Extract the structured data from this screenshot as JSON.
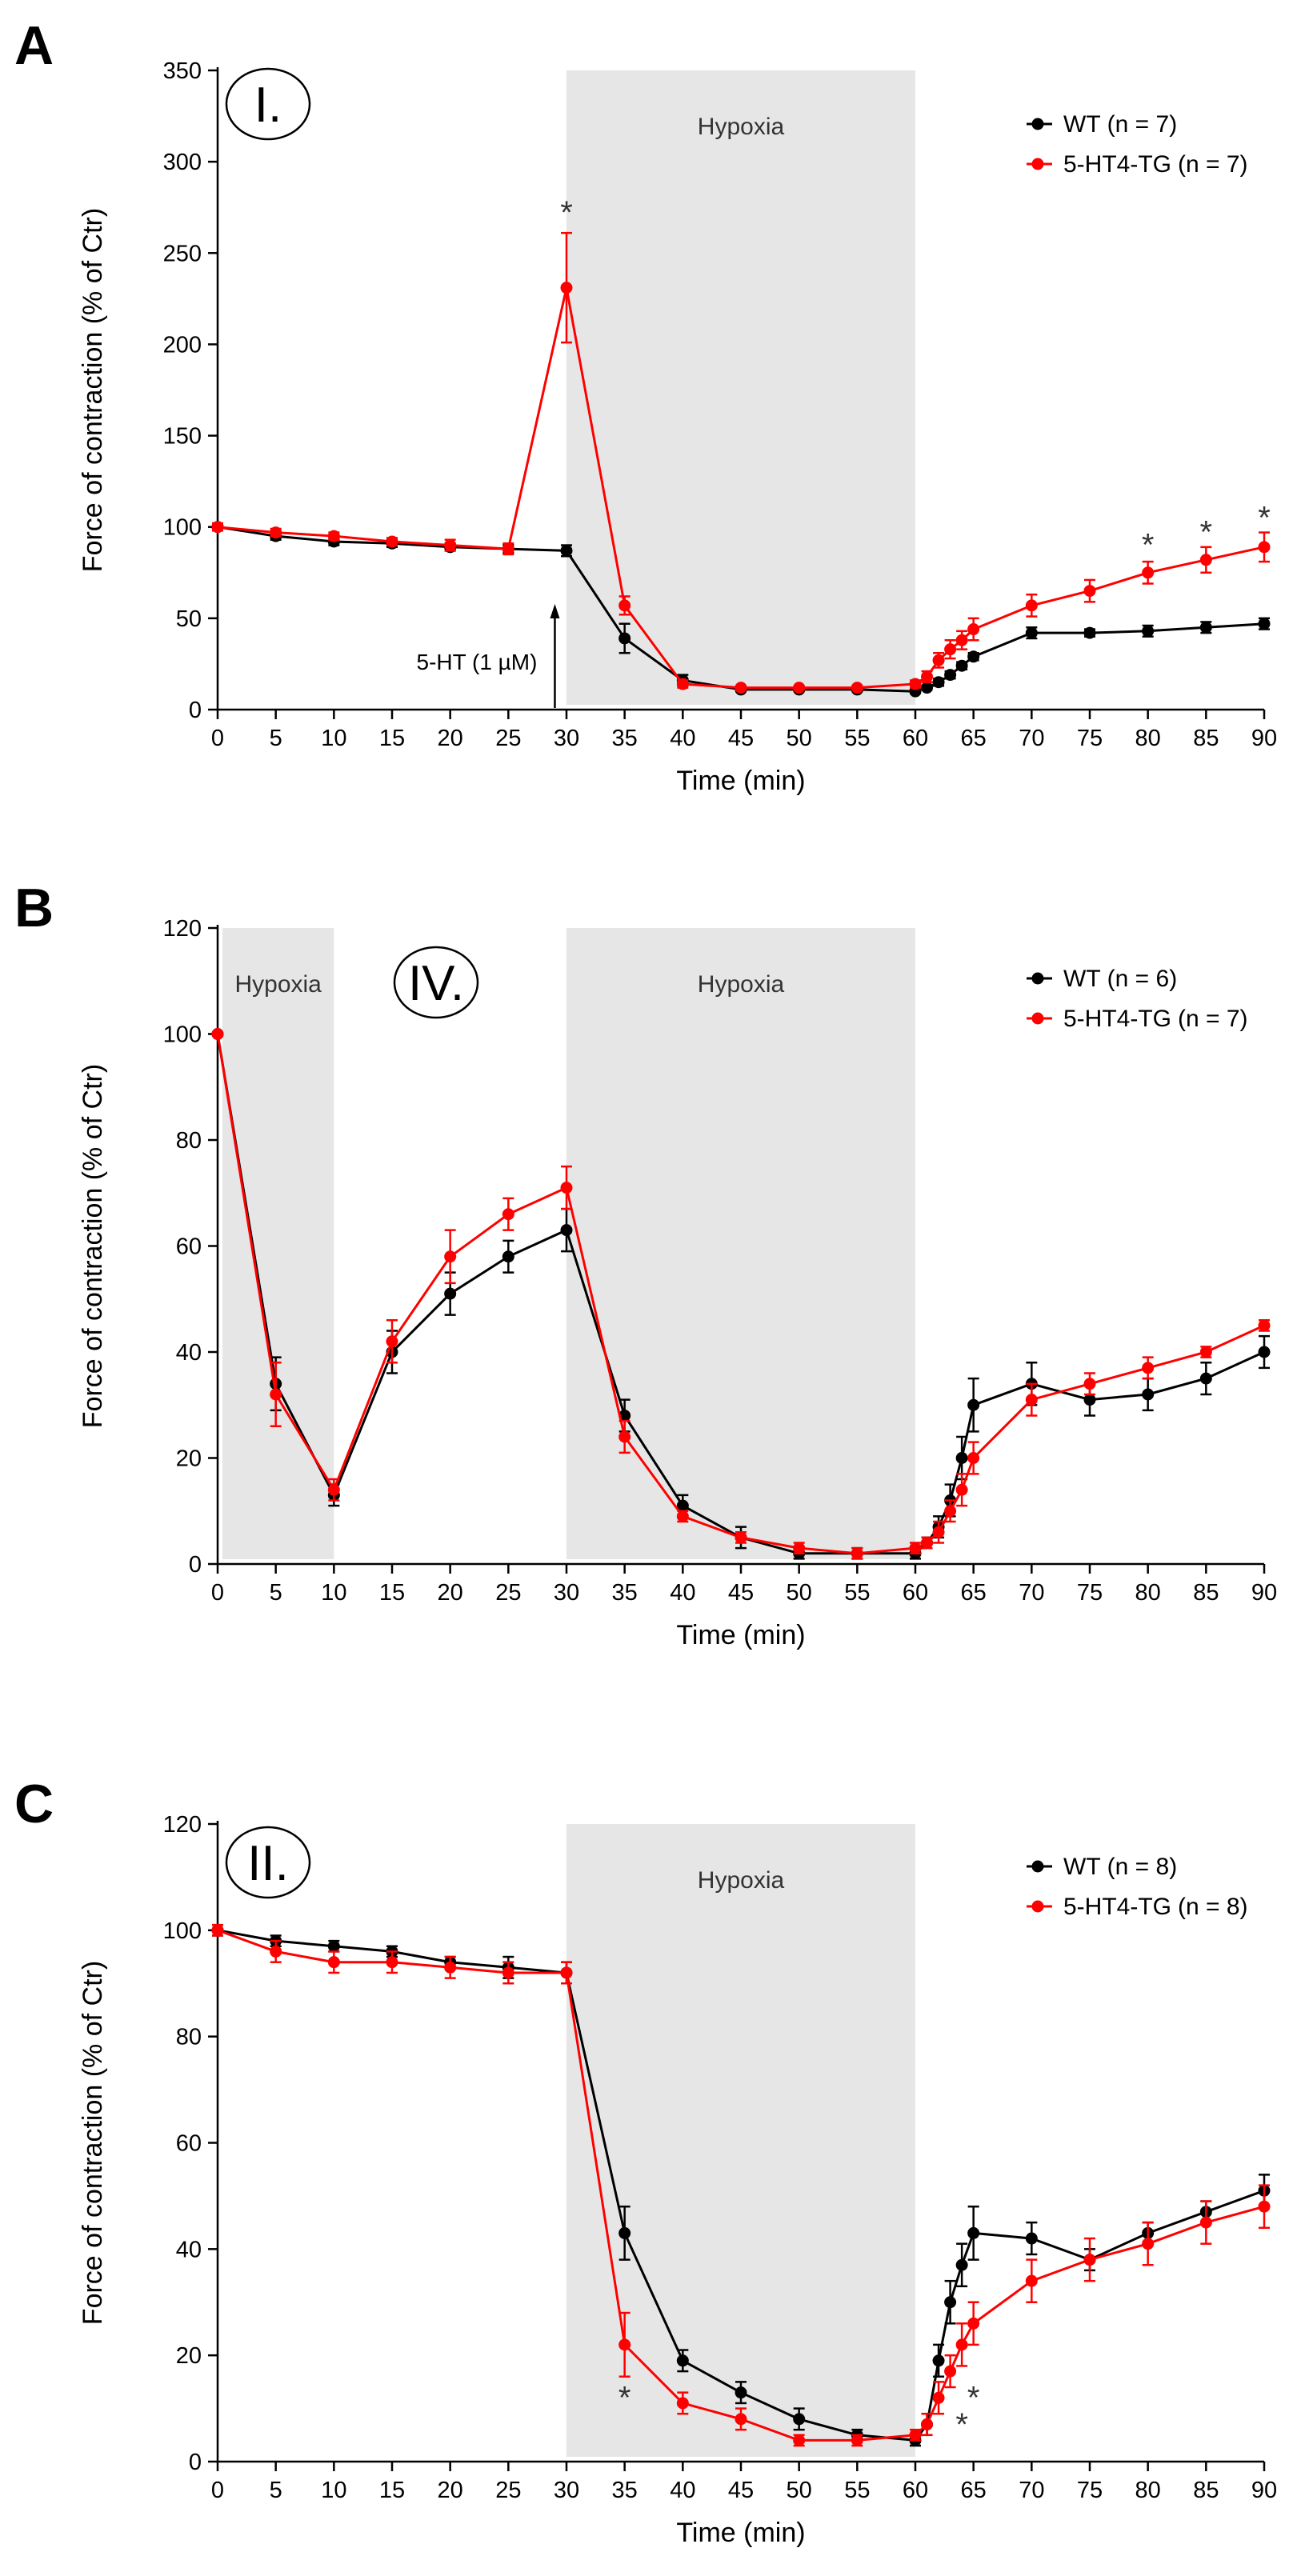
{
  "chart_data": [
    {
      "panel_letter": "A",
      "roman": "I.",
      "type": "line",
      "xlabel": "Time (min)",
      "ylabel": "Force of contraction (% of Ctr)",
      "xlim": [
        0,
        90
      ],
      "ylim": [
        0,
        350
      ],
      "xticks": [
        0,
        5,
        10,
        15,
        20,
        25,
        30,
        35,
        40,
        45,
        50,
        55,
        60,
        65,
        70,
        75,
        80,
        85,
        90
      ],
      "yticks": [
        0,
        50,
        100,
        150,
        200,
        250,
        300,
        350
      ],
      "shaded_regions": [
        {
          "x0": 30,
          "x1": 60,
          "label": "Hypoxia"
        }
      ],
      "annotations": [
        {
          "text": "5-HT (1 µM)",
          "x": 29,
          "y": 0,
          "arrow": true
        }
      ],
      "significance": [
        {
          "x": 30,
          "y": 275,
          "text": "*"
        },
        {
          "x": 80,
          "y": 93,
          "text": "*"
        },
        {
          "x": 85,
          "y": 100,
          "text": "*"
        },
        {
          "x": 90,
          "y": 108,
          "text": "*"
        }
      ],
      "legend_position": "top-right",
      "series": [
        {
          "name": "WT",
          "n_label": "(n = 7)",
          "color": "#000000",
          "x": [
            0,
            5,
            10,
            15,
            20,
            25,
            30,
            35,
            40,
            45,
            50,
            55,
            60,
            61,
            62,
            63,
            64,
            65,
            70,
            75,
            80,
            85,
            90
          ],
          "y": [
            100,
            95,
            92,
            91,
            89,
            88,
            87,
            39,
            16,
            11,
            11,
            11,
            10,
            12,
            15,
            19,
            24,
            29,
            42,
            42,
            43,
            45,
            47
          ],
          "err": [
            2,
            2,
            2,
            2,
            2,
            2,
            3,
            8,
            3,
            1,
            1,
            1,
            1,
            1,
            2,
            2,
            2,
            2,
            3,
            2,
            3,
            3,
            3
          ]
        },
        {
          "name": "5-HT4-TG",
          "n_label": "(n = 7)",
          "color": "#ff0000",
          "x": [
            0,
            5,
            10,
            15,
            20,
            25,
            30,
            35,
            40,
            45,
            50,
            55,
            60,
            61,
            62,
            63,
            64,
            65,
            70,
            75,
            80,
            85,
            90
          ],
          "y": [
            100,
            97,
            95,
            92,
            90,
            88,
            231,
            57,
            14,
            12,
            12,
            12,
            14,
            18,
            27,
            33,
            38,
            44,
            57,
            65,
            75,
            82,
            89
          ],
          "err": [
            2,
            2,
            2,
            2,
            3,
            3,
            30,
            5,
            2,
            1,
            1,
            1,
            2,
            3,
            4,
            5,
            5,
            6,
            6,
            6,
            6,
            7,
            8
          ]
        }
      ]
    },
    {
      "panel_letter": "B",
      "roman": "IV.",
      "type": "line",
      "xlabel": "Time (min)",
      "ylabel": "Force of contraction (% of Ctr)",
      "xlim": [
        0,
        90
      ],
      "ylim": [
        0,
        120
      ],
      "xticks": [
        0,
        5,
        10,
        15,
        20,
        25,
        30,
        35,
        40,
        45,
        50,
        55,
        60,
        65,
        70,
        75,
        80,
        85,
        90
      ],
      "yticks": [
        0,
        20,
        40,
        60,
        80,
        100,
        120
      ],
      "shaded_regions": [
        {
          "x0": 0,
          "x1": 10,
          "label": "Hypoxia"
        },
        {
          "x0": 30,
          "x1": 60,
          "label": "Hypoxia"
        }
      ],
      "annotations": [],
      "significance": [],
      "legend_position": "top-right",
      "series": [
        {
          "name": "WT",
          "n_label": "(n = 6)",
          "color": "#000000",
          "x": [
            0,
            5,
            10,
            15,
            20,
            25,
            30,
            35,
            40,
            45,
            50,
            55,
            60,
            61,
            62,
            63,
            64,
            65,
            70,
            75,
            80,
            85,
            90
          ],
          "y": [
            100,
            34,
            13,
            40,
            51,
            58,
            63,
            28,
            11,
            5,
            2,
            2,
            2,
            4,
            7,
            12,
            20,
            30,
            34,
            31,
            32,
            35,
            40
          ],
          "err": [
            0,
            5,
            2,
            4,
            4,
            3,
            4,
            3,
            2,
            2,
            1,
            1,
            1,
            1,
            2,
            3,
            4,
            5,
            4,
            3,
            3,
            3,
            3
          ]
        },
        {
          "name": "5-HT4-TG",
          "n_label": "(n = 7)",
          "color": "#ff0000",
          "x": [
            0,
            5,
            10,
            15,
            20,
            25,
            30,
            35,
            40,
            45,
            50,
            55,
            60,
            61,
            62,
            63,
            64,
            65,
            70,
            75,
            80,
            85,
            90
          ],
          "y": [
            100,
            32,
            14,
            42,
            58,
            66,
            71,
            24,
            9,
            5,
            3,
            2,
            3,
            4,
            6,
            10,
            14,
            20,
            31,
            34,
            37,
            40,
            45
          ],
          "err": [
            0,
            6,
            2,
            4,
            5,
            3,
            4,
            3,
            1,
            1,
            1,
            1,
            1,
            1,
            2,
            2,
            3,
            3,
            3,
            2,
            2,
            1,
            1
          ]
        }
      ]
    },
    {
      "panel_letter": "C",
      "roman": "II.",
      "type": "line",
      "xlabel": "Time (min)",
      "ylabel": "Force of contraction (% of Ctr)",
      "xlim": [
        0,
        90
      ],
      "ylim": [
        0,
        120
      ],
      "xticks": [
        0,
        5,
        10,
        15,
        20,
        25,
        30,
        35,
        40,
        45,
        50,
        55,
        60,
        65,
        70,
        75,
        80,
        85,
        90
      ],
      "yticks": [
        0,
        20,
        40,
        60,
        80,
        100,
        120
      ],
      "shaded_regions": [
        {
          "x0": 30,
          "x1": 60,
          "label": "Hypoxia"
        }
      ],
      "annotations": [],
      "significance": [
        {
          "x": 35,
          "y": 13,
          "text": "*"
        },
        {
          "x": 64,
          "y": 8,
          "text": "*"
        },
        {
          "x": 65,
          "y": 13,
          "text": "*"
        }
      ],
      "legend_position": "top-right",
      "series": [
        {
          "name": "WT",
          "n_label": "(n = 8)",
          "color": "#000000",
          "x": [
            0,
            5,
            10,
            15,
            20,
            25,
            30,
            35,
            40,
            45,
            50,
            55,
            60,
            61,
            62,
            63,
            64,
            65,
            70,
            75,
            80,
            85,
            90
          ],
          "y": [
            100,
            98,
            97,
            96,
            94,
            93,
            92,
            43,
            19,
            13,
            8,
            5,
            4,
            7,
            19,
            30,
            37,
            43,
            42,
            38,
            43,
            47,
            51
          ],
          "err": [
            1,
            1,
            1,
            1,
            1,
            2,
            2,
            5,
            2,
            2,
            2,
            1,
            1,
            2,
            3,
            4,
            4,
            5,
            3,
            2,
            2,
            2,
            3
          ]
        },
        {
          "name": "5-HT4-TG",
          "n_label": "(n = 8)",
          "color": "#ff0000",
          "x": [
            0,
            5,
            10,
            15,
            20,
            25,
            30,
            35,
            40,
            45,
            50,
            55,
            60,
            61,
            62,
            63,
            64,
            65,
            70,
            75,
            80,
            85,
            90
          ],
          "y": [
            100,
            96,
            94,
            94,
            93,
            92,
            92,
            22,
            11,
            8,
            4,
            4,
            5,
            7,
            12,
            17,
            22,
            26,
            34,
            38,
            41,
            45,
            48
          ],
          "err": [
            1,
            2,
            2,
            2,
            2,
            2,
            2,
            6,
            2,
            2,
            1,
            1,
            1,
            2,
            3,
            3,
            4,
            4,
            4,
            4,
            4,
            4,
            4
          ]
        }
      ]
    }
  ]
}
